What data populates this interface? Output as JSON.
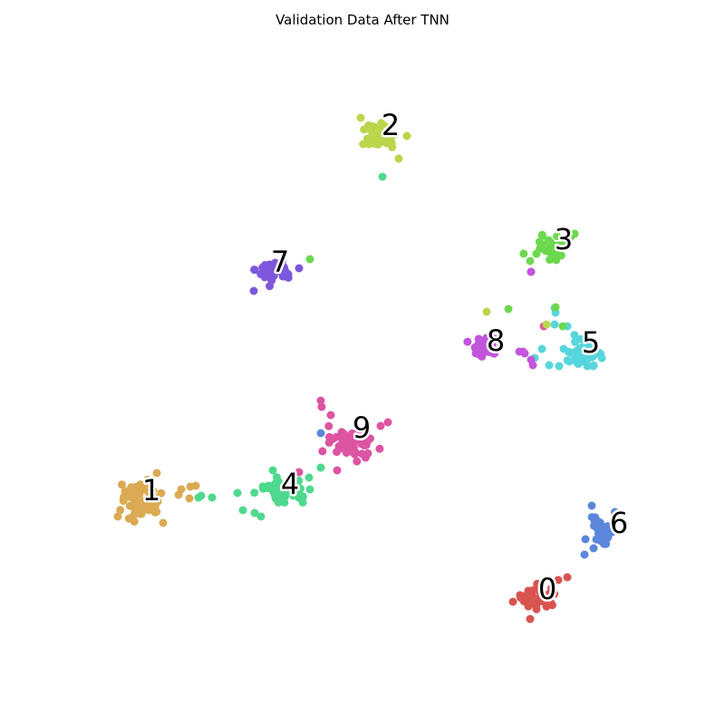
{
  "chart_data": {
    "type": "scatter",
    "title": "Validation Data After TNN",
    "xlabel": "",
    "ylabel": "",
    "axes_visible": false,
    "grid": false,
    "legend": "none",
    "xlim": [
      0,
      800
    ],
    "ylim": [
      0,
      800
    ],
    "classes": [
      {
        "label": "0",
        "color": "#d9534f",
        "center": [
          596,
          660
        ],
        "spread": [
          18,
          10
        ],
        "n": 40,
        "label_pos": [
          604,
          650
        ],
        "extra": [
          [
            626,
            637
          ],
          [
            616,
            640
          ],
          [
            566,
            664
          ],
          [
            585,
            683
          ]
        ]
      },
      {
        "label": "1",
        "color": "#dbaa52",
        "center": [
          155,
          550
        ],
        "spread": [
          18,
          17
        ],
        "n": 70,
        "label_pos": [
          167,
          541
        ],
        "extra": [
          [
            200,
            540
          ],
          [
            210,
            537
          ],
          [
            216,
            536
          ],
          [
            197,
            546
          ],
          [
            209,
            550
          ],
          [
            173,
            522
          ],
          [
            130,
            570
          ],
          [
            180,
            577
          ]
        ]
      },
      {
        "label": "2",
        "color": "#bad64b",
        "center": [
          420,
          150
        ],
        "spread": [
          14,
          14
        ],
        "n": 55,
        "label_pos": [
          431,
          138
        ],
        "extra": [
          [
            449,
            150
          ],
          [
            398,
            130
          ],
          [
            440,
            175
          ]
        ]
      },
      {
        "label": "3",
        "color": "#6cd84f",
        "center": [
          607,
          273
        ],
        "spread": [
          14,
          10
        ],
        "n": 40,
        "label_pos": [
          622,
          264
        ],
        "extra": [
          [
            634,
            258
          ],
          [
            585,
            288
          ]
        ]
      },
      {
        "label": "4",
        "color": "#4fd98e",
        "center": [
          312,
          542
        ],
        "spread": [
          18,
          12
        ],
        "n": 55,
        "label_pos": [
          320,
          534
        ],
        "extra": [
          [
            234,
            549
          ],
          [
            222,
            547
          ],
          [
            262,
            544
          ],
          [
            268,
            563
          ],
          [
            341,
            527
          ],
          [
            354,
            516
          ],
          [
            288,
            570
          ],
          [
            281,
            566
          ],
          [
            301,
            519
          ]
        ]
      },
      {
        "label": "5",
        "color": "#57d6db",
        "center": [
          645,
          390
        ],
        "spread": [
          18,
          10
        ],
        "n": 50,
        "label_pos": [
          652,
          378
        ],
        "extra": [
          [
            613,
            345
          ],
          [
            612,
            340
          ],
          [
            626,
            360
          ],
          [
            612,
            358
          ],
          [
            606,
            403
          ],
          [
            617,
            404
          ],
          [
            590,
            395
          ],
          [
            598,
            385
          ],
          [
            622,
            385
          ]
        ]
      },
      {
        "label": "6",
        "color": "#5b86dc",
        "center": [
          665,
          585
        ],
        "spread": [
          10,
          13
        ],
        "n": 35,
        "label_pos": [
          683,
          577
        ],
        "extra": [
          [
            653,
            558
          ],
          [
            646,
            595
          ],
          [
            645,
            612
          ],
          [
            655,
            605
          ]
        ]
      },
      {
        "label": "7",
        "color": "#7e57dc",
        "center": [
          302,
          298
        ],
        "spread": [
          17,
          9
        ],
        "n": 50,
        "label_pos": [
          309,
          289
        ],
        "extra": [
          [
            280,
            321
          ],
          [
            330,
            296
          ]
        ]
      },
      {
        "label": "8",
        "color": "#c355dc",
        "center": [
          535,
          382
        ],
        "spread": [
          12,
          9
        ],
        "n": 40,
        "label_pos": [
          547,
          376
        ],
        "extra": [
          [
            573,
            388
          ],
          [
            579,
            390
          ],
          [
            586,
            397
          ],
          [
            588,
            403
          ],
          [
            586,
            300
          ],
          [
            577,
            388
          ]
        ]
      },
      {
        "label": "9",
        "color": "#dc54a2",
        "center": [
          390,
          490
        ],
        "spread": [
          20,
          13
        ],
        "n": 55,
        "label_pos": [
          399,
          472
        ],
        "extra": [
          [
            354,
            442
          ],
          [
            355,
            449
          ],
          [
            365,
            458
          ],
          [
            372,
            519
          ],
          [
            428,
            466
          ],
          [
            420,
            470
          ],
          [
            330,
            521
          ]
        ]
      }
    ],
    "outliers": [
      {
        "x": 342,
        "y": 286,
        "color": "#6cd84f"
      },
      {
        "x": 422,
        "y": 195,
        "color": "#4fd98e"
      },
      {
        "x": 537,
        "y": 344,
        "color": "#bad64b"
      },
      {
        "x": 561,
        "y": 341,
        "color": "#6cd84f"
      },
      {
        "x": 613,
        "y": 339,
        "color": "#6cd84f"
      },
      {
        "x": 621,
        "y": 360,
        "color": "#6cd84f"
      },
      {
        "x": 600,
        "y": 360,
        "color": "#dc54a2"
      },
      {
        "x": 603,
        "y": 358,
        "color": "#bad64b"
      },
      {
        "x": 586,
        "y": 300,
        "color": "#c355dc"
      },
      {
        "x": 354,
        "y": 478,
        "color": "#5b86dc"
      },
      {
        "x": 219,
        "y": 549,
        "color": "#4fd98e"
      },
      {
        "x": 354,
        "y": 516,
        "color": "#4fd98e"
      }
    ]
  }
}
